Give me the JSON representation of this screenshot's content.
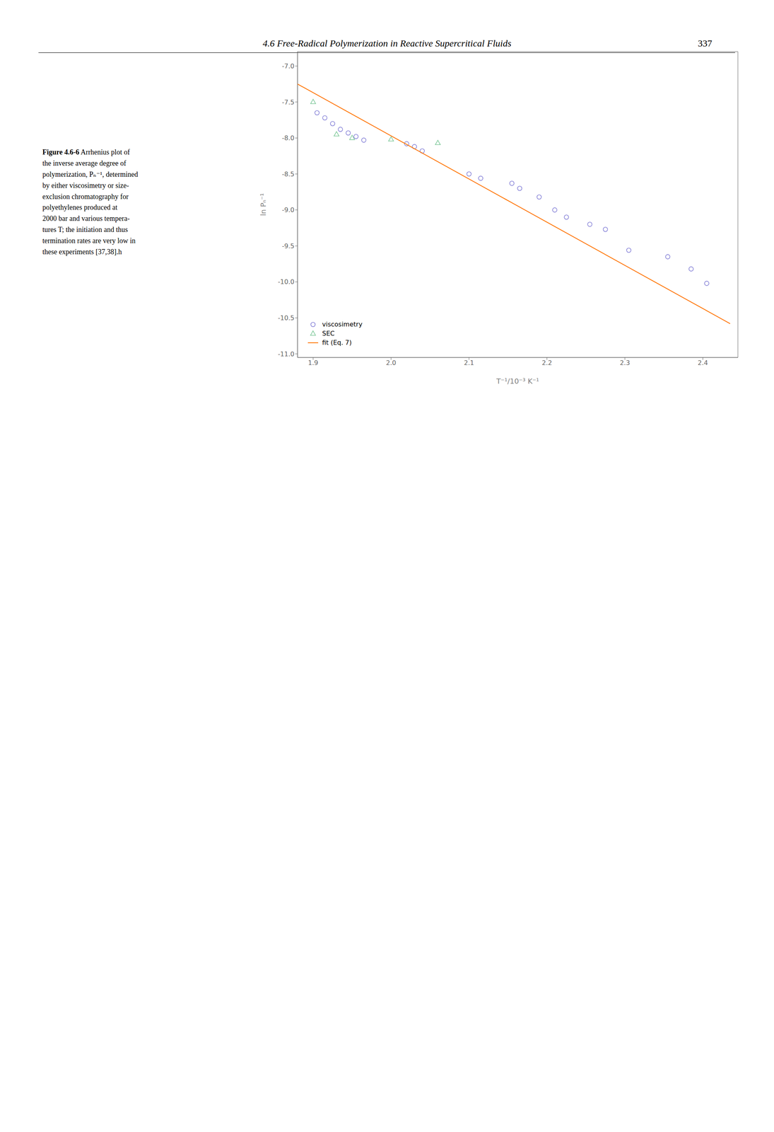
{
  "chart_data": {
    "type": "scatter",
    "title": "4.6 Free-Radical Polymerization in Reactive Supercritical Fluids",
    "page_number": "337",
    "caption_label": "Figure 4.6-6",
    "caption_lines": [
      "Arrhenius plot of",
      "the inverse average degree of",
      "polymerization, Pₙ⁻¹, determined",
      "by either viscosimetry or size-",
      "exclusion chromatography for",
      "polyethylenes produced at",
      "2000 bar and various tempera-",
      "tures T; the initiation and thus",
      "termination rates are very low in",
      "these experiments [37,38].h"
    ],
    "x_label": "T⁻¹/10⁻³ K⁻¹",
    "y_label": "ln Pₙ⁻¹",
    "xlim": [
      1.88,
      2.445
    ],
    "ylim": [
      -11.05,
      -6.8
    ],
    "xticks": [
      1.9,
      {
        "value": 2.0,
        "label": "2.0"
      },
      2.1,
      2.2,
      2.3,
      2.4
    ],
    "yticks": [
      {
        "value": -7.0,
        "label": "-7.0"
      },
      -7.5,
      {
        "value": -8.0,
        "label": "-8.0"
      },
      -8.5,
      {
        "value": -9.0,
        "label": "-9.0"
      },
      -9.5,
      {
        "value": -10.0,
        "label": "-10.0"
      },
      -10.5,
      {
        "value": -11.0,
        "label": "-11.0"
      }
    ],
    "grid": false,
    "legend": "lower left",
    "series": [
      {
        "name": "viscosimetry",
        "type": "scatter",
        "marker": "circle",
        "color": "#8884d8",
        "x": [
          1.905,
          1.915,
          1.925,
          1.935,
          1.945,
          1.955,
          1.965,
          2.02,
          2.03,
          2.04,
          2.1,
          2.115,
          2.155,
          2.165,
          2.19,
          2.21,
          2.225,
          2.255,
          2.275,
          2.305,
          2.355,
          2.385,
          2.405
        ],
        "values": [
          -7.65,
          -7.72,
          -7.8,
          -7.88,
          -7.93,
          -7.98,
          -8.03,
          -8.08,
          -8.12,
          -8.18,
          -8.5,
          -8.56,
          -8.63,
          -8.7,
          -8.82,
          -9.0,
          -9.1,
          -9.2,
          -9.27,
          -9.56,
          -9.65,
          -9.82,
          -10.02
        ]
      },
      {
        "name": "SEC",
        "type": "scatter",
        "marker": "triangle",
        "color": "#82ca9d",
        "x": [
          1.9,
          1.93,
          1.95,
          2.0,
          2.06
        ],
        "values": [
          -7.5,
          -7.95,
          -8.0,
          -8.02,
          -8.07
        ]
      },
      {
        "name": "fit (Eq. 7)",
        "type": "line",
        "line_style": "solid",
        "color": "#ff7300",
        "x": [
          1.88,
          2.435
        ],
        "values": [
          -7.25,
          -10.58
        ]
      }
    ]
  }
}
